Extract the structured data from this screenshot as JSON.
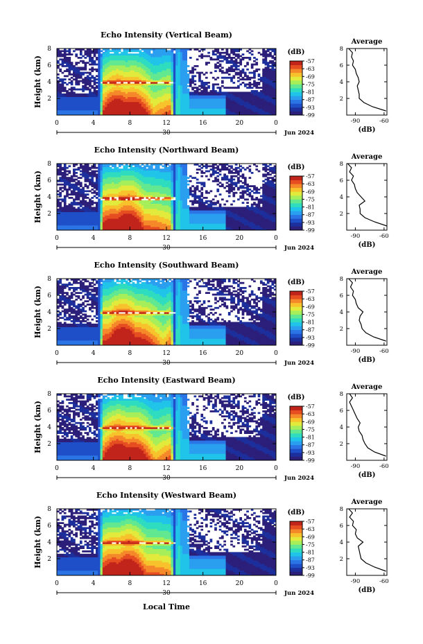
{
  "figure": {
    "x_axis_label": "Local Time",
    "date_label": "Jun 2024",
    "mid_date_tick": "30"
  },
  "chart_data": [
    {
      "type": "heatmap",
      "title": "Echo Intensity (Vertical Beam)",
      "ylabel": "Height (km)",
      "unit_label": "(dB)",
      "x_ticks": [
        "0",
        "4",
        "8",
        "12",
        "16",
        "20",
        "0"
      ],
      "y_ticks": [
        "8",
        "6",
        "4",
        "2"
      ],
      "xlim": [
        0,
        24
      ],
      "ylim": [
        0,
        8
      ],
      "colorbar_ticks": [
        "-57",
        "-63",
        "-69",
        "-75",
        "-81",
        "-87",
        "-93",
        "-99"
      ],
      "colorbar_range": [
        -99,
        -57
      ],
      "bright_band_height": 3.9,
      "average": {
        "title": "Average",
        "xlabel": "(dB)",
        "x_ticks": [
          "-90",
          "-60"
        ],
        "y_ticks": [
          "8",
          "6",
          "4",
          "2"
        ],
        "xlim": [
          -99,
          -57
        ],
        "heights": [
          0.5,
          1.0,
          1.5,
          2.0,
          2.5,
          3.0,
          3.5,
          4.0,
          4.5,
          5.0,
          5.5,
          6.0,
          6.5,
          7.0,
          7.5,
          8.0
        ],
        "values": [
          -58,
          -72,
          -81,
          -86,
          -86,
          -87,
          -88,
          -86,
          -87,
          -89,
          -90,
          -93,
          -92,
          -94,
          -93,
          -97
        ]
      }
    },
    {
      "type": "heatmap",
      "title": "Echo Intensity (Northward Beam)",
      "ylabel": "Height (km)",
      "unit_label": "(dB)",
      "x_ticks": [
        "0",
        "4",
        "8",
        "12",
        "16",
        "20",
        "0"
      ],
      "y_ticks": [
        "8",
        "6",
        "4",
        "2"
      ],
      "xlim": [
        0,
        24
      ],
      "ylim": [
        0,
        8
      ],
      "colorbar_ticks": [
        "-57",
        "-63",
        "-69",
        "-75",
        "-81",
        "-87",
        "-93",
        "-99"
      ],
      "colorbar_range": [
        -99,
        -57
      ],
      "bright_band_height": 3.8,
      "average": {
        "title": "Average",
        "xlabel": "(dB)",
        "x_ticks": [
          "-90",
          "-60"
        ],
        "y_ticks": [
          "8",
          "6",
          "4",
          "2"
        ],
        "xlim": [
          -99,
          -57
        ],
        "heights": [
          0.5,
          1.0,
          1.5,
          2.0,
          2.5,
          3.0,
          3.5,
          4.0,
          4.5,
          5.0,
          5.5,
          6.0,
          6.5,
          7.0,
          7.5,
          8.0
        ],
        "values": [
          -57,
          -70,
          -80,
          -85,
          -85,
          -86,
          -80,
          -84,
          -88,
          -90,
          -91,
          -94,
          -92,
          -96,
          -94,
          -98
        ]
      }
    },
    {
      "type": "heatmap",
      "title": "Echo Intensity (Southward Beam)",
      "ylabel": "Height (km)",
      "unit_label": "(dB)",
      "x_ticks": [
        "0",
        "4",
        "8",
        "12",
        "16",
        "20",
        "0"
      ],
      "y_ticks": [
        "8",
        "6",
        "4",
        "2"
      ],
      "xlim": [
        0,
        24
      ],
      "ylim": [
        0,
        8
      ],
      "colorbar_ticks": [
        "-57",
        "-63",
        "-69",
        "-75",
        "-81",
        "-87",
        "-93",
        "-99"
      ],
      "colorbar_range": [
        -99,
        -57
      ],
      "bright_band_height": 3.9,
      "average": {
        "title": "Average",
        "xlabel": "(dB)",
        "x_ticks": [
          "-90",
          "-60"
        ],
        "y_ticks": [
          "8",
          "6",
          "4",
          "2"
        ],
        "xlim": [
          -99,
          -57
        ],
        "heights": [
          0.5,
          1.0,
          1.5,
          2.0,
          2.5,
          3.0,
          3.5,
          4.0,
          4.5,
          5.0,
          5.5,
          6.0,
          6.5,
          7.0,
          7.5,
          8.0
        ],
        "values": [
          -58,
          -71,
          -79,
          -83,
          -84,
          -86,
          -85,
          -82,
          -87,
          -89,
          -90,
          -93,
          -92,
          -95,
          -93,
          -97
        ]
      }
    },
    {
      "type": "heatmap",
      "title": "Echo Intensity (Eastward Beam)",
      "ylabel": "Height (km)",
      "unit_label": "(dB)",
      "x_ticks": [
        "0",
        "4",
        "8",
        "12",
        "16",
        "20",
        "0"
      ],
      "y_ticks": [
        "8",
        "6",
        "4",
        "2"
      ],
      "xlim": [
        0,
        24
      ],
      "ylim": [
        0,
        8
      ],
      "colorbar_ticks": [
        "-57",
        "-63",
        "-69",
        "-75",
        "-81",
        "-87",
        "-93",
        "-99"
      ],
      "colorbar_range": [
        -99,
        -57
      ],
      "bright_band_height": 3.9,
      "average": {
        "title": "Average",
        "xlabel": "(dB)",
        "x_ticks": [
          "-90",
          "-60"
        ],
        "y_ticks": [
          "8",
          "6",
          "4",
          "2"
        ],
        "xlim": [
          -99,
          -57
        ],
        "heights": [
          0.5,
          1.0,
          1.5,
          2.0,
          2.5,
          3.0,
          3.5,
          4.0,
          4.5,
          5.0,
          5.5,
          6.0,
          6.5,
          7.0,
          7.5,
          8.0
        ],
        "values": [
          -58,
          -70,
          -77,
          -80,
          -82,
          -83,
          -86,
          -87,
          -85,
          -88,
          -90,
          -92,
          -94,
          -96,
          -93,
          -96
        ]
      }
    },
    {
      "type": "heatmap",
      "title": "Echo Intensity (Westward Beam)",
      "ylabel": "Height (km)",
      "unit_label": "(dB)",
      "x_ticks": [
        "0",
        "4",
        "8",
        "12",
        "16",
        "20",
        "0"
      ],
      "y_ticks": [
        "8",
        "6",
        "4",
        "2"
      ],
      "xlim": [
        0,
        24
      ],
      "ylim": [
        0,
        8
      ],
      "colorbar_ticks": [
        "-57",
        "-63",
        "-69",
        "-75",
        "-81",
        "-87",
        "-93",
        "-99"
      ],
      "colorbar_range": [
        -99,
        -57
      ],
      "bright_band_height": 3.9,
      "average": {
        "title": "Average",
        "xlabel": "(dB)",
        "x_ticks": [
          "-90",
          "-60"
        ],
        "y_ticks": [
          "8",
          "6",
          "4",
          "2"
        ],
        "xlim": [
          -99,
          -57
        ],
        "heights": [
          0.5,
          1.0,
          1.5,
          2.0,
          2.5,
          3.0,
          3.5,
          4.0,
          4.5,
          5.0,
          5.5,
          6.0,
          6.5,
          7.0,
          7.5,
          8.0
        ],
        "values": [
          -58,
          -70,
          -79,
          -84,
          -85,
          -86,
          -87,
          -82,
          -88,
          -90,
          -89,
          -93,
          -92,
          -96,
          -93,
          -97
        ]
      }
    }
  ]
}
